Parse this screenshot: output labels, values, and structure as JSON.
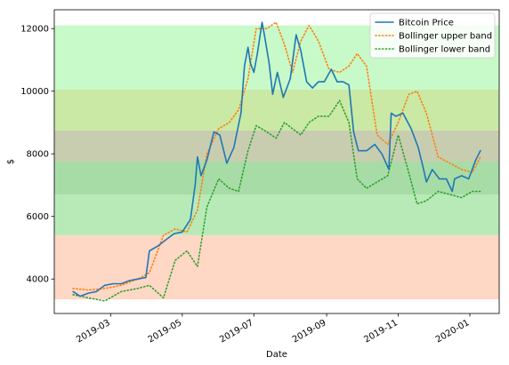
{
  "chart_data": {
    "type": "line",
    "title": "",
    "xlabel": "Date",
    "ylabel": "$",
    "xlim": [
      "2019-01-12",
      "2020-01-26"
    ],
    "ylim": [
      2900,
      12600
    ],
    "x_ticks": [
      "2019-03",
      "2019-05",
      "2019-07",
      "2019-09",
      "2019-11",
      "2020-01"
    ],
    "y_ticks": [
      4000,
      6000,
      8000,
      10000,
      12000
    ],
    "grid": false,
    "legend_position": "top-right",
    "bands": [
      {
        "y0": 3350,
        "y1": 5400,
        "color": "#ff8c5a",
        "opacity": 0.35
      },
      {
        "y0": 5400,
        "y1": 6700,
        "color": "#7ed97e",
        "opacity": 0.55
      },
      {
        "y0": 6700,
        "y1": 7750,
        "color": "#5fbf5f",
        "opacity": 0.55
      },
      {
        "y0": 7750,
        "y1": 8750,
        "color": "#b0b88e",
        "opacity": 0.7
      },
      {
        "y0": 8750,
        "y1": 10050,
        "color": "#c3e79b",
        "opacity": 0.9
      },
      {
        "y0": 10050,
        "y1": 12100,
        "color": "#b6f7b6",
        "opacity": 0.75
      }
    ],
    "series": [
      {
        "name": "Bitcoin Price",
        "color": "#1f77b4",
        "style": "solid",
        "x": [
          "2019-01-28",
          "2019-02-03",
          "2019-02-10",
          "2019-02-17",
          "2019-02-24",
          "2019-03-03",
          "2019-03-10",
          "2019-03-17",
          "2019-03-24",
          "2019-03-31",
          "2019-04-03",
          "2019-04-10",
          "2019-04-17",
          "2019-04-24",
          "2019-05-01",
          "2019-05-08",
          "2019-05-12",
          "2019-05-14",
          "2019-05-17",
          "2019-05-22",
          "2019-05-28",
          "2019-06-02",
          "2019-06-08",
          "2019-06-14",
          "2019-06-20",
          "2019-06-23",
          "2019-06-26",
          "2019-06-28",
          "2019-07-01",
          "2019-07-04",
          "2019-07-08",
          "2019-07-10",
          "2019-07-14",
          "2019-07-17",
          "2019-07-21",
          "2019-07-26",
          "2019-08-01",
          "2019-08-06",
          "2019-08-10",
          "2019-08-15",
          "2019-08-20",
          "2019-08-25",
          "2019-08-30",
          "2019-09-05",
          "2019-09-10",
          "2019-09-15",
          "2019-09-20",
          "2019-09-24",
          "2019-09-28",
          "2019-10-05",
          "2019-10-12",
          "2019-10-18",
          "2019-10-24",
          "2019-10-26",
          "2019-10-30",
          "2019-11-05",
          "2019-11-12",
          "2019-11-18",
          "2019-11-22",
          "2019-11-25",
          "2019-11-30",
          "2019-12-06",
          "2019-12-12",
          "2019-12-17",
          "2019-12-19",
          "2019-12-25",
          "2019-12-31",
          "2020-01-06",
          "2020-01-10"
        ],
        "values": [
          3600,
          3450,
          3550,
          3600,
          3800,
          3850,
          3850,
          3950,
          4000,
          4050,
          4900,
          5050,
          5250,
          5450,
          5500,
          5900,
          7000,
          7900,
          7300,
          7800,
          8700,
          8600,
          7700,
          8200,
          9300,
          10800,
          11400,
          10900,
          10600,
          11200,
          12200,
          11800,
          10900,
          9900,
          10600,
          9800,
          10400,
          11800,
          11300,
          10300,
          10100,
          10300,
          10300,
          10700,
          10300,
          10300,
          10200,
          8700,
          8100,
          8100,
          8300,
          8000,
          7500,
          9300,
          9200,
          9300,
          8800,
          8200,
          7600,
          7100,
          7500,
          7200,
          7200,
          6800,
          7200,
          7300,
          7200,
          7800,
          8100
        ]
      },
      {
        "name": "Bollinger upper band",
        "color": "#ff7f0e",
        "style": "dotted",
        "x": [
          "2019-01-28",
          "2019-02-10",
          "2019-02-24",
          "2019-03-10",
          "2019-03-24",
          "2019-04-03",
          "2019-04-15",
          "2019-04-25",
          "2019-05-05",
          "2019-05-14",
          "2019-05-22",
          "2019-06-01",
          "2019-06-10",
          "2019-06-18",
          "2019-06-26",
          "2019-07-03",
          "2019-07-12",
          "2019-07-20",
          "2019-07-27",
          "2019-08-03",
          "2019-08-10",
          "2019-08-17",
          "2019-08-25",
          "2019-09-03",
          "2019-09-12",
          "2019-09-20",
          "2019-09-27",
          "2019-10-05",
          "2019-10-14",
          "2019-10-23",
          "2019-11-01",
          "2019-11-10",
          "2019-11-17",
          "2019-11-25",
          "2019-12-05",
          "2019-12-15",
          "2019-12-25",
          "2020-01-03",
          "2020-01-10"
        ],
        "values": [
          3700,
          3650,
          3700,
          3800,
          4000,
          4200,
          5400,
          5600,
          5500,
          6200,
          8000,
          8800,
          9000,
          9400,
          10400,
          12000,
          12000,
          12200,
          11500,
          10600,
          11600,
          12100,
          11600,
          10700,
          10600,
          10800,
          11200,
          10800,
          8600,
          8300,
          9000,
          9900,
          10000,
          9300,
          7900,
          7700,
          7500,
          7400,
          7900
        ]
      },
      {
        "name": "Bollinger lower band",
        "color": "#2ca02c",
        "style": "dotted",
        "x": [
          "2019-01-28",
          "2019-02-10",
          "2019-02-24",
          "2019-03-10",
          "2019-03-24",
          "2019-04-03",
          "2019-04-15",
          "2019-04-25",
          "2019-05-05",
          "2019-05-14",
          "2019-05-22",
          "2019-06-01",
          "2019-06-10",
          "2019-06-18",
          "2019-06-26",
          "2019-07-03",
          "2019-07-12",
          "2019-07-20",
          "2019-07-27",
          "2019-08-03",
          "2019-08-10",
          "2019-08-17",
          "2019-08-25",
          "2019-09-03",
          "2019-09-12",
          "2019-09-20",
          "2019-09-27",
          "2019-10-05",
          "2019-10-14",
          "2019-10-23",
          "2019-11-01",
          "2019-11-10",
          "2019-11-17",
          "2019-11-25",
          "2019-12-05",
          "2019-12-15",
          "2019-12-25",
          "2020-01-03",
          "2020-01-10"
        ],
        "values": [
          3500,
          3400,
          3300,
          3600,
          3700,
          3800,
          3400,
          4600,
          4900,
          4400,
          6300,
          7200,
          6900,
          6800,
          8100,
          8900,
          8700,
          8500,
          9000,
          8800,
          8600,
          9000,
          9200,
          9200,
          9700,
          9000,
          7200,
          6900,
          7100,
          7300,
          8600,
          7400,
          6400,
          6500,
          6800,
          6700,
          6600,
          6800,
          6800
        ]
      }
    ]
  }
}
